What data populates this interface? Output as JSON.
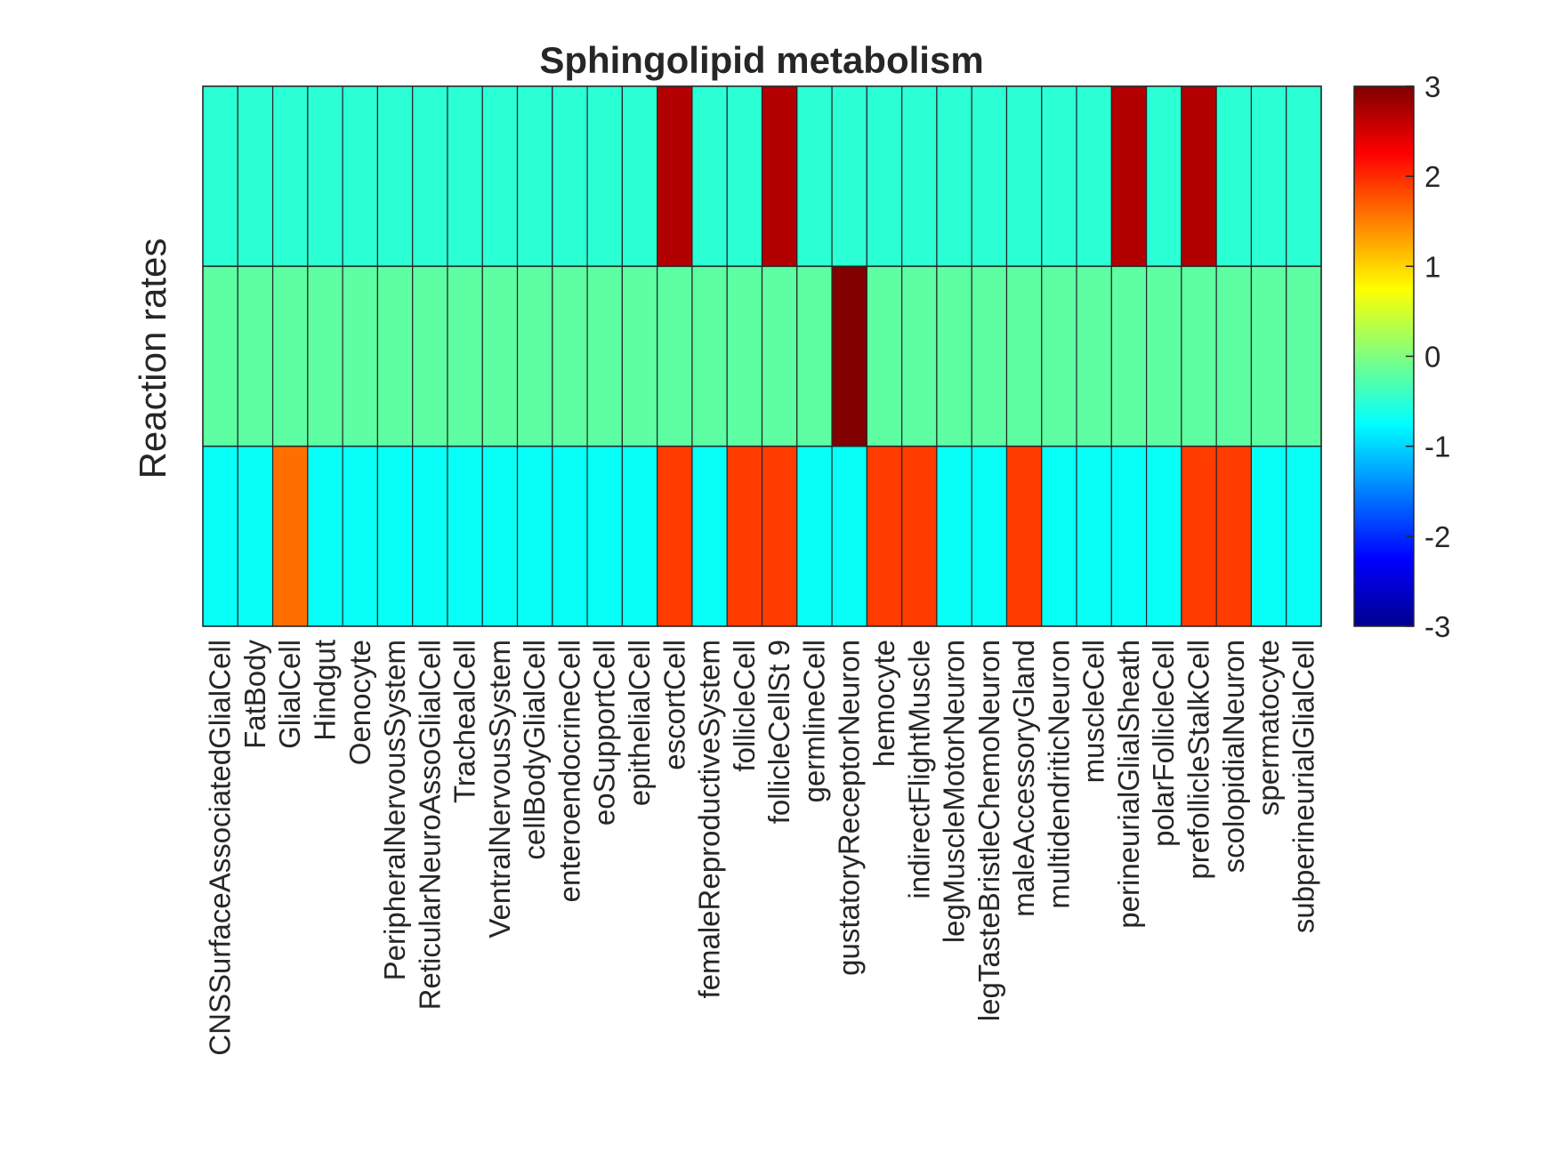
{
  "chart_data": {
    "type": "heatmap",
    "title": "Sphingolipid metabolism",
    "xlabel": "",
    "ylabel": "Reaction rates",
    "categories": [
      "CNSSurfaceAssociatedGlialCell",
      "FatBody",
      "GlialCell",
      "Hindgut",
      "Oenocyte",
      "PeripheralNervousSystem",
      "ReticularNeuroAssoGlialCell",
      "TrachealCell",
      "VentralNervousSystem",
      "cellBodyGlialCell",
      "enteroendocrineCell",
      "eoSupportCell",
      "epithelialCell",
      "escortCell",
      "femaleReproductiveSystem",
      "follicleCell",
      "follicleCellSt 9",
      "germlineCell",
      "gustatoryReceptorNeuron",
      "hemocyte",
      "indirectFlightMuscle",
      "legMuscleMotorNeuron",
      "legTasteBristleChemoNeuron",
      "maleAccessoryGland",
      "multidendriticNeuron",
      "muscleCell",
      "perineurialGlialSheath",
      "polarFollicleCell",
      "prefollicleStalkCell",
      "scolopidialNeuron",
      "spermatocyte",
      "subperineurialGlialCell"
    ],
    "rows": 3,
    "values": [
      [
        -0.5,
        -0.5,
        -0.5,
        -0.5,
        -0.5,
        -0.5,
        -0.5,
        -0.5,
        -0.5,
        -0.5,
        -0.5,
        -0.5,
        -0.5,
        2.7,
        -0.5,
        -0.5,
        2.7,
        -0.5,
        -0.5,
        -0.5,
        -0.5,
        -0.5,
        -0.5,
        -0.5,
        -0.5,
        -0.5,
        2.7,
        -0.5,
        2.7,
        -0.5,
        -0.5,
        -0.5
      ],
      [
        -0.2,
        -0.2,
        -0.2,
        -0.2,
        -0.2,
        -0.2,
        -0.2,
        -0.2,
        -0.2,
        -0.2,
        -0.2,
        -0.2,
        -0.2,
        -0.2,
        -0.2,
        -0.2,
        -0.2,
        -0.2,
        3.0,
        -0.2,
        -0.2,
        -0.2,
        -0.2,
        -0.2,
        -0.2,
        -0.2,
        -0.2,
        -0.2,
        -0.2,
        -0.2,
        -0.2,
        -0.2
      ],
      [
        -0.7,
        -0.7,
        1.6,
        -0.7,
        -0.7,
        -0.7,
        -0.7,
        -0.7,
        -0.7,
        -0.7,
        -0.7,
        -0.7,
        -0.7,
        1.9,
        -0.7,
        1.9,
        1.9,
        -0.7,
        -0.7,
        1.9,
        1.9,
        -0.7,
        -0.7,
        1.9,
        -0.7,
        -0.7,
        -0.7,
        -0.7,
        1.9,
        1.9,
        -0.7,
        -0.7
      ]
    ],
    "colormap": "jet",
    "clim": [
      -3,
      3
    ],
    "colorbar": {
      "ticks": [
        "3",
        "2",
        "1",
        "0",
        "-1",
        "-2",
        "-3"
      ],
      "tick_values": [
        3,
        2,
        1,
        0,
        -1,
        -2,
        -3
      ]
    },
    "grid": false,
    "legend": "colorbar-right"
  }
}
